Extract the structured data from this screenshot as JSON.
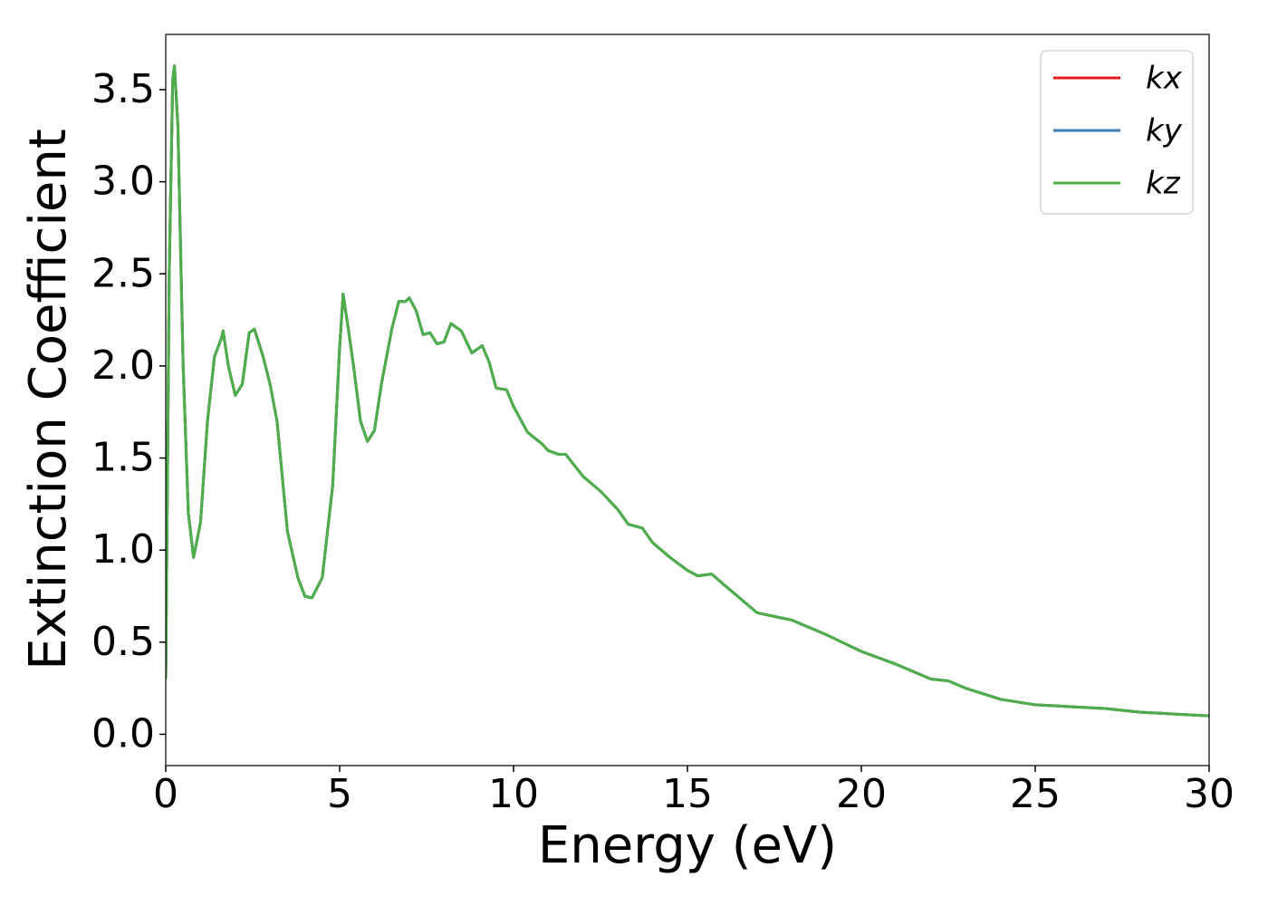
{
  "chart_data": {
    "type": "line",
    "xlabel": "Energy (eV)",
    "ylabel": "Extinction Coefficient",
    "x": [
      0,
      0.1,
      0.2,
      0.25,
      0.35,
      0.5,
      0.65,
      0.8,
      1.0,
      1.2,
      1.4,
      1.6,
      1.65,
      1.8,
      2.0,
      2.2,
      2.4,
      2.55,
      2.8,
      3.0,
      3.2,
      3.5,
      3.8,
      4.0,
      4.2,
      4.5,
      4.8,
      5.0,
      5.1,
      5.25,
      5.4,
      5.6,
      5.8,
      6.0,
      6.2,
      6.5,
      6.7,
      6.9,
      7.0,
      7.2,
      7.4,
      7.6,
      7.8,
      8.0,
      8.2,
      8.5,
      8.8,
      9.1,
      9.3,
      9.5,
      9.8,
      10.0,
      10.4,
      10.8,
      11.0,
      11.3,
      11.5,
      12.0,
      12.5,
      13.0,
      13.3,
      13.7,
      14.0,
      14.5,
      15.0,
      15.3,
      15.7,
      16.0,
      16.5,
      17.0,
      17.5,
      18.0,
      18.5,
      19.0,
      20.0,
      21.0,
      22.0,
      22.5,
      23.0,
      24.0,
      25.0,
      26.0,
      27.0,
      28.0,
      29.0,
      30.0
    ],
    "series": [
      {
        "name": "kx",
        "color": "#e41a1c",
        "values": [
          0.3,
          2.5,
          3.55,
          3.63,
          3.3,
          2.0,
          1.2,
          0.96,
          1.15,
          1.7,
          2.05,
          2.15,
          2.19,
          2.0,
          1.84,
          1.9,
          2.18,
          2.2,
          2.05,
          1.9,
          1.7,
          1.1,
          0.85,
          0.75,
          0.74,
          0.85,
          1.35,
          2.1,
          2.39,
          2.2,
          2.0,
          1.7,
          1.59,
          1.65,
          1.9,
          2.2,
          2.35,
          2.35,
          2.37,
          2.3,
          2.17,
          2.18,
          2.12,
          2.13,
          2.23,
          2.19,
          2.07,
          2.11,
          2.02,
          1.88,
          1.87,
          1.78,
          1.64,
          1.58,
          1.54,
          1.52,
          1.52,
          1.4,
          1.32,
          1.22,
          1.14,
          1.12,
          1.04,
          0.96,
          0.89,
          0.86,
          0.87,
          0.82,
          0.74,
          0.66,
          0.64,
          0.62,
          0.58,
          0.54,
          0.45,
          0.38,
          0.3,
          0.29,
          0.25,
          0.19,
          0.16,
          0.15,
          0.14,
          0.12,
          0.11,
          0.1
        ]
      },
      {
        "name": "ky",
        "color": "#377eb8",
        "values": [
          0.3,
          2.5,
          3.55,
          3.63,
          3.3,
          2.0,
          1.2,
          0.96,
          1.15,
          1.7,
          2.05,
          2.15,
          2.19,
          2.0,
          1.84,
          1.9,
          2.18,
          2.2,
          2.05,
          1.9,
          1.7,
          1.1,
          0.85,
          0.75,
          0.74,
          0.85,
          1.35,
          2.1,
          2.39,
          2.2,
          2.0,
          1.7,
          1.59,
          1.65,
          1.9,
          2.2,
          2.35,
          2.35,
          2.37,
          2.3,
          2.17,
          2.18,
          2.12,
          2.13,
          2.23,
          2.19,
          2.07,
          2.11,
          2.02,
          1.88,
          1.87,
          1.78,
          1.64,
          1.58,
          1.54,
          1.52,
          1.52,
          1.4,
          1.32,
          1.22,
          1.14,
          1.12,
          1.04,
          0.96,
          0.89,
          0.86,
          0.87,
          0.82,
          0.74,
          0.66,
          0.64,
          0.62,
          0.58,
          0.54,
          0.45,
          0.38,
          0.3,
          0.29,
          0.25,
          0.19,
          0.16,
          0.15,
          0.14,
          0.12,
          0.11,
          0.1
        ]
      },
      {
        "name": "kz",
        "color": "#4daf4a",
        "values": [
          0.3,
          2.5,
          3.55,
          3.63,
          3.3,
          2.0,
          1.2,
          0.96,
          1.15,
          1.7,
          2.05,
          2.15,
          2.19,
          2.0,
          1.84,
          1.9,
          2.18,
          2.2,
          2.05,
          1.9,
          1.7,
          1.1,
          0.85,
          0.75,
          0.74,
          0.85,
          1.35,
          2.1,
          2.39,
          2.2,
          2.0,
          1.7,
          1.59,
          1.65,
          1.9,
          2.2,
          2.35,
          2.35,
          2.37,
          2.3,
          2.17,
          2.18,
          2.12,
          2.13,
          2.23,
          2.19,
          2.07,
          2.11,
          2.02,
          1.88,
          1.87,
          1.78,
          1.64,
          1.58,
          1.54,
          1.52,
          1.52,
          1.4,
          1.32,
          1.22,
          1.14,
          1.12,
          1.04,
          0.96,
          0.89,
          0.86,
          0.87,
          0.82,
          0.74,
          0.66,
          0.64,
          0.62,
          0.58,
          0.54,
          0.45,
          0.38,
          0.3,
          0.29,
          0.25,
          0.19,
          0.16,
          0.15,
          0.14,
          0.12,
          0.11,
          0.1
        ]
      }
    ],
    "xlim": [
      0,
      30
    ],
    "xticks": [
      0,
      5,
      10,
      15,
      20,
      25,
      30
    ],
    "ylim": [
      -0.17,
      3.8
    ],
    "yticks": [
      {
        "value": 0,
        "label": "0.0"
      },
      0.5,
      {
        "value": 1,
        "label": "1.0"
      },
      1.5,
      {
        "value": 2,
        "label": "2.0"
      },
      2.5,
      {
        "value": 3,
        "label": "3.0"
      },
      3.5
    ],
    "grid": false,
    "legend": "upper right"
  }
}
